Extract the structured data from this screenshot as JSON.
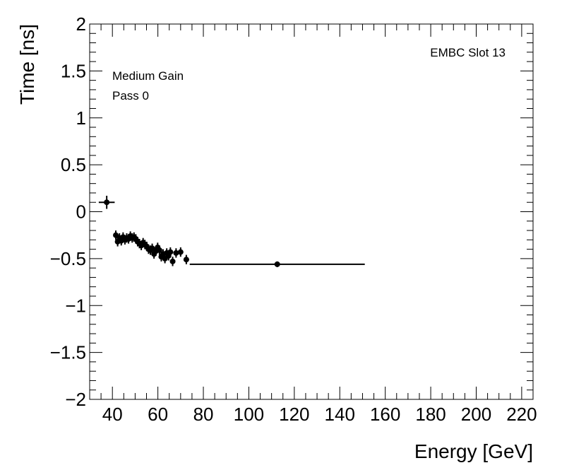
{
  "chart_data": {
    "type": "scatter",
    "xlabel": "Energy [GeV]",
    "ylabel": "Time [ns]",
    "xlim": [
      30,
      225
    ],
    "ylim": [
      -2,
      2
    ],
    "x_ticks": [
      40,
      60,
      80,
      100,
      120,
      140,
      160,
      180,
      200,
      220
    ],
    "y_ticks": [
      {
        "value": 2,
        "label": "2"
      },
      {
        "value": 1.5,
        "label": "1.5"
      },
      {
        "value": 1,
        "label": "1"
      },
      {
        "value": 0.5,
        "label": "0.5"
      },
      {
        "value": 0,
        "label": "0"
      },
      {
        "value": -0.5,
        "label": "−0.5"
      },
      {
        "value": -1,
        "label": "−1"
      },
      {
        "value": -1.5,
        "label": "−1.5"
      },
      {
        "value": -2,
        "label": "−2"
      }
    ],
    "annotations": {
      "top_right": "EMBC Slot 13",
      "line1": "Medium Gain",
      "line2": "Pass 0"
    },
    "points": [
      {
        "x": 37.5,
        "y": 0.1,
        "xerr": 3.5,
        "yerr": 0.07
      },
      {
        "x": 41.5,
        "y": -0.25,
        "xerr": 0.5,
        "yerr": 0.05
      },
      {
        "x": 42.3,
        "y": -0.32,
        "xerr": 0.5,
        "yerr": 0.05
      },
      {
        "x": 43.1,
        "y": -0.28,
        "xerr": 0.5,
        "yerr": 0.05
      },
      {
        "x": 43.9,
        "y": -0.31,
        "xerr": 0.5,
        "yerr": 0.05
      },
      {
        "x": 44.7,
        "y": -0.27,
        "xerr": 0.5,
        "yerr": 0.05
      },
      {
        "x": 45.5,
        "y": -0.3,
        "xerr": 0.5,
        "yerr": 0.05
      },
      {
        "x": 46.3,
        "y": -0.28,
        "xerr": 0.5,
        "yerr": 0.05
      },
      {
        "x": 47.1,
        "y": -0.29,
        "xerr": 0.5,
        "yerr": 0.05
      },
      {
        "x": 47.9,
        "y": -0.26,
        "xerr": 0.5,
        "yerr": 0.05
      },
      {
        "x": 48.7,
        "y": -0.28,
        "xerr": 0.5,
        "yerr": 0.05
      },
      {
        "x": 49.5,
        "y": -0.27,
        "xerr": 0.5,
        "yerr": 0.05
      },
      {
        "x": 50.3,
        "y": -0.29,
        "xerr": 0.5,
        "yerr": 0.05
      },
      {
        "x": 51.1,
        "y": -0.32,
        "xerr": 0.5,
        "yerr": 0.05
      },
      {
        "x": 51.9,
        "y": -0.34,
        "xerr": 0.5,
        "yerr": 0.05
      },
      {
        "x": 52.7,
        "y": -0.36,
        "xerr": 0.5,
        "yerr": 0.05
      },
      {
        "x": 53.5,
        "y": -0.33,
        "xerr": 0.5,
        "yerr": 0.05
      },
      {
        "x": 54.3,
        "y": -0.35,
        "xerr": 0.5,
        "yerr": 0.05
      },
      {
        "x": 55.1,
        "y": -0.37,
        "xerr": 0.5,
        "yerr": 0.05
      },
      {
        "x": 55.9,
        "y": -0.4,
        "xerr": 0.5,
        "yerr": 0.05
      },
      {
        "x": 56.7,
        "y": -0.41,
        "xerr": 0.5,
        "yerr": 0.05
      },
      {
        "x": 57.5,
        "y": -0.39,
        "xerr": 0.5,
        "yerr": 0.05
      },
      {
        "x": 58.3,
        "y": -0.45,
        "xerr": 0.5,
        "yerr": 0.05
      },
      {
        "x": 59.1,
        "y": -0.42,
        "xerr": 0.5,
        "yerr": 0.05
      },
      {
        "x": 59.9,
        "y": -0.38,
        "xerr": 0.5,
        "yerr": 0.05
      },
      {
        "x": 60.7,
        "y": -0.41,
        "xerr": 0.5,
        "yerr": 0.05
      },
      {
        "x": 61.5,
        "y": -0.48,
        "xerr": 0.5,
        "yerr": 0.05
      },
      {
        "x": 62.3,
        "y": -0.45,
        "xerr": 0.5,
        "yerr": 0.05
      },
      {
        "x": 63.1,
        "y": -0.5,
        "xerr": 0.5,
        "yerr": 0.05
      },
      {
        "x": 63.9,
        "y": -0.44,
        "xerr": 0.5,
        "yerr": 0.05
      },
      {
        "x": 64.7,
        "y": -0.47,
        "xerr": 0.5,
        "yerr": 0.05
      },
      {
        "x": 65.5,
        "y": -0.43,
        "xerr": 0.5,
        "yerr": 0.05
      },
      {
        "x": 66.5,
        "y": -0.53,
        "xerr": 0.5,
        "yerr": 0.05
      },
      {
        "x": 68.0,
        "y": -0.44,
        "xerr": 0.7,
        "yerr": 0.05
      },
      {
        "x": 70.0,
        "y": -0.43,
        "xerr": 0.8,
        "yerr": 0.05
      },
      {
        "x": 72.5,
        "y": -0.51,
        "xerr": 1.2,
        "yerr": 0.05
      },
      {
        "x": 112.5,
        "y": -0.56,
        "xerr": 38.5,
        "yerr": 0.03
      }
    ]
  }
}
